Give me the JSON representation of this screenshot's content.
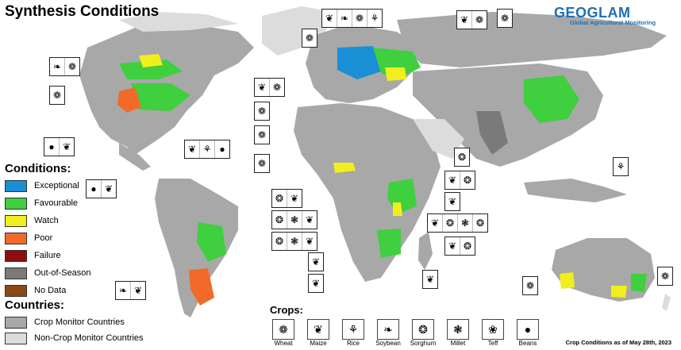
{
  "title": "Synthesis Conditions",
  "logo": {
    "mark": "GEOGLAM",
    "subtitle": "Global Agricultural Monitoring"
  },
  "conditions_title": "Conditions:",
  "conditions": [
    {
      "label": "Exceptional",
      "color": "#1a8fd6"
    },
    {
      "label": "Favourable",
      "color": "#3fcf3f"
    },
    {
      "label": "Watch",
      "color": "#f2ee1b"
    },
    {
      "label": "Poor",
      "color": "#f26a2a"
    },
    {
      "label": "Failure",
      "color": "#8b0f0f"
    },
    {
      "label": "Out-of-Season",
      "color": "#7a7a7a"
    },
    {
      "label": "No Data",
      "color": "#8a4a12"
    }
  ],
  "countries_title": "Countries:",
  "countries": [
    {
      "label": "Crop Monitor Countries",
      "color": "#a8a8a8"
    },
    {
      "label": "Non-Crop Monitor Countries",
      "color": "#dcdcdc"
    }
  ],
  "crops_title": "Crops:",
  "crops": [
    {
      "label": "Wheat",
      "icon": "wheat-icon",
      "glyph": "❁"
    },
    {
      "label": "Maize",
      "icon": "maize-icon",
      "glyph": "❦"
    },
    {
      "label": "Rice",
      "icon": "rice-icon",
      "glyph": "⚘"
    },
    {
      "label": "Soybean",
      "icon": "soybean-icon",
      "glyph": "❧"
    },
    {
      "label": "Sorghum",
      "icon": "sorghum-icon",
      "glyph": "❂"
    },
    {
      "label": "Millet",
      "icon": "millet-icon",
      "glyph": "❃"
    },
    {
      "label": "Teff",
      "icon": "teff-icon",
      "glyph": "❀"
    },
    {
      "label": "Beans",
      "icon": "beans-icon",
      "glyph": "●"
    }
  ],
  "footer": "Crop Conditions as of May 28th, 2023",
  "colors": {
    "ocean": "#ffffff",
    "crop_country": "#a8a8a8",
    "non_crop_country": "#dcdcdc",
    "border": "#ffffff"
  }
}
